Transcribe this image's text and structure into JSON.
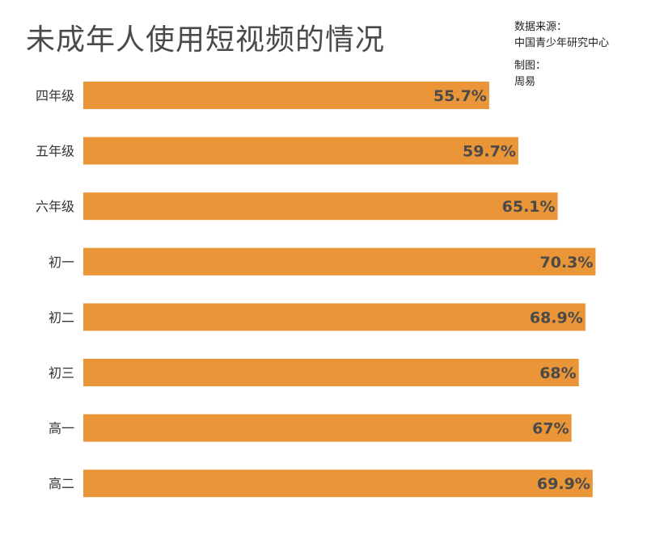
{
  "title": "未成年人使用短视频的情况",
  "source": {
    "line1": "数据来源：",
    "line2": "中国青少年研究中心",
    "line3": "制图：",
    "line4": "周易"
  },
  "colors": {
    "bar": "#EA9537"
  },
  "chart_data": {
    "type": "bar",
    "orientation": "horizontal",
    "title": "未成年人使用短视频的情况",
    "xlabel": "",
    "ylabel": "",
    "xlim": [
      0,
      100
    ],
    "categories": [
      "四年级",
      "五年级",
      "六年级",
      "初一",
      "初二",
      "初三",
      "高一",
      "高二"
    ],
    "values": [
      55.7,
      59.7,
      65.1,
      70.3,
      68.9,
      68,
      67,
      69.9
    ],
    "labels": [
      "55.7%",
      "59.7%",
      "65.1%",
      "70.3%",
      "68.9%",
      "68%",
      "67%",
      "69.9%"
    ],
    "grid": false,
    "legend": "none"
  }
}
